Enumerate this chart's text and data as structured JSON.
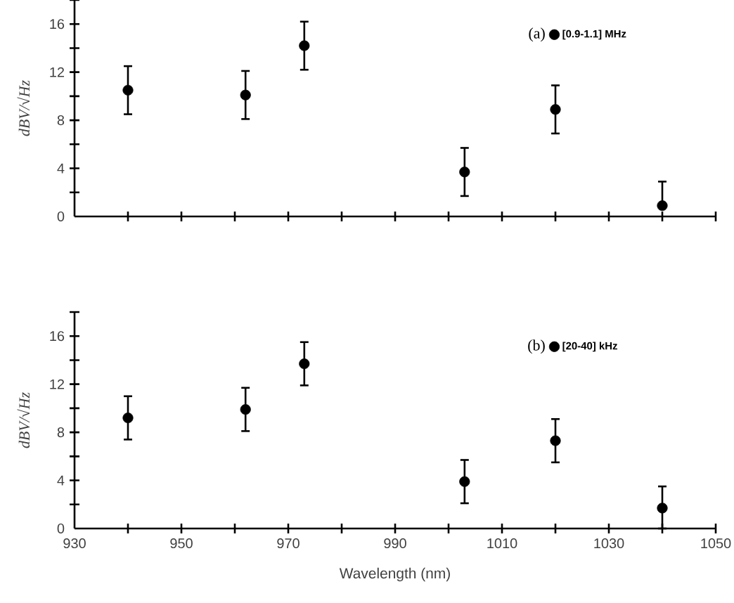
{
  "chart_data": [
    {
      "type": "scatter",
      "ylabel": "dBV/√Hz",
      "x": [
        940,
        962,
        973,
        1003,
        1020,
        1040
      ],
      "series": [
        {
          "name": "[0.9-1.1] MHz",
          "color": "#000000",
          "values": [
            10.5,
            10.1,
            14.2,
            3.7,
            8.9,
            0.9
          ],
          "errors": [
            2,
            2,
            2,
            2,
            2,
            [
              0.9,
              2.9
            ]
          ]
        }
      ],
      "xlim": [
        930,
        1050
      ],
      "xticks": [
        930,
        {
          "value": 940,
          "label": null
        },
        950,
        {
          "value": 960,
          "label": null
        },
        970,
        {
          "value": 980,
          "label": null
        },
        990,
        {
          "value": 1000,
          "label": null
        },
        1010,
        {
          "value": 1020,
          "label": null
        },
        1030,
        {
          "value": 1040,
          "label": null
        },
        1050
      ],
      "ylim": [
        0,
        18
      ],
      "yticks": [
        0,
        {
          "value": 2,
          "label": null
        },
        4,
        {
          "value": 6,
          "label": null
        },
        8,
        {
          "value": 10,
          "label": null
        },
        12,
        {
          "value": 14,
          "label": null
        },
        16,
        {
          "value": 18,
          "label": null
        }
      ],
      "tick_labels": "y",
      "legend": "top right",
      "marker": "circle",
      "grid": false,
      "annotations": [
        "(a)"
      ]
    },
    {
      "type": "scatter",
      "ylabel": "dBV/√Hz",
      "xlabel": "Wavelength (nm)",
      "x": [
        940,
        962,
        973,
        1003,
        1020,
        1040
      ],
      "series": [
        {
          "name": "[20-40] kHz",
          "color": "#000000",
          "values": [
            9.2,
            9.9,
            13.7,
            3.9,
            7.3,
            1.7
          ],
          "errors": [
            1.8,
            1.8,
            1.8,
            1.8,
            1.8,
            [
              0,
              3.5
            ]
          ]
        }
      ],
      "xlim": [
        930,
        1050
      ],
      "xticks": [
        930,
        {
          "value": 940,
          "label": null
        },
        950,
        {
          "value": 960,
          "label": null
        },
        970,
        {
          "value": 980,
          "label": null
        },
        990,
        {
          "value": 1000,
          "label": null
        },
        1010,
        {
          "value": 1020,
          "label": null
        },
        1030,
        {
          "value": 1040,
          "label": null
        },
        1050
      ],
      "ylim": [
        0,
        18
      ],
      "yticks": [
        0,
        {
          "value": 2,
          "label": null
        },
        4,
        {
          "value": 6,
          "label": null
        },
        8,
        {
          "value": 10,
          "label": null
        },
        12,
        {
          "value": 14,
          "label": null
        },
        16,
        {
          "value": 18,
          "label": null
        }
      ],
      "legend": "top right",
      "marker": "circle",
      "grid": false,
      "annotations": [
        "(b)"
      ]
    }
  ]
}
